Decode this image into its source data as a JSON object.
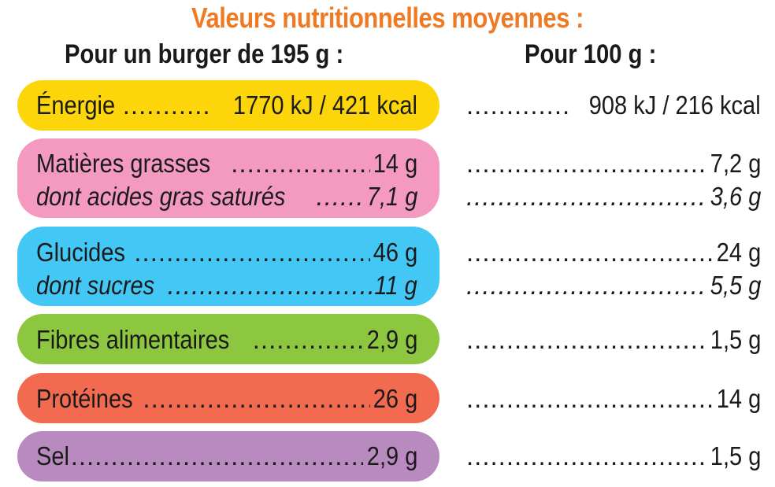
{
  "title": "Valeurs nutritionnelles moyennes :",
  "headers": {
    "per_burger": "Pour un burger de 195 g :",
    "per_100g": "Pour 100 g :"
  },
  "rows": [
    {
      "label": "Énergie",
      "burger": "1770 kJ / 421 kcal",
      "per100": "908 kJ / 216 kcal",
      "color": "#fcd60a"
    },
    {
      "label": "Matières grasses",
      "burger": "14 g",
      "per100": "7,2 g",
      "color": "#f49ac1"
    },
    {
      "label": "dont acides gras saturés",
      "burger": "7,1 g",
      "per100": "3,6 g"
    },
    {
      "label": "Glucides",
      "burger": "46 g",
      "per100": "24 g",
      "color": "#43c7f4"
    },
    {
      "label": "dont sucres",
      "burger": "11 g",
      "per100": "5,5 g"
    },
    {
      "label": "Fibres alimentaires",
      "burger": "2,9 g",
      "per100": "1,5 g",
      "color": "#8dc63f"
    },
    {
      "label": "Protéines",
      "burger": "26 g",
      "per100": "14 g",
      "color": "#f26a4f"
    },
    {
      "label": "Sel",
      "burger": "2,9 g",
      "per100": "1,5 g",
      "color": "#b98abf"
    }
  ]
}
